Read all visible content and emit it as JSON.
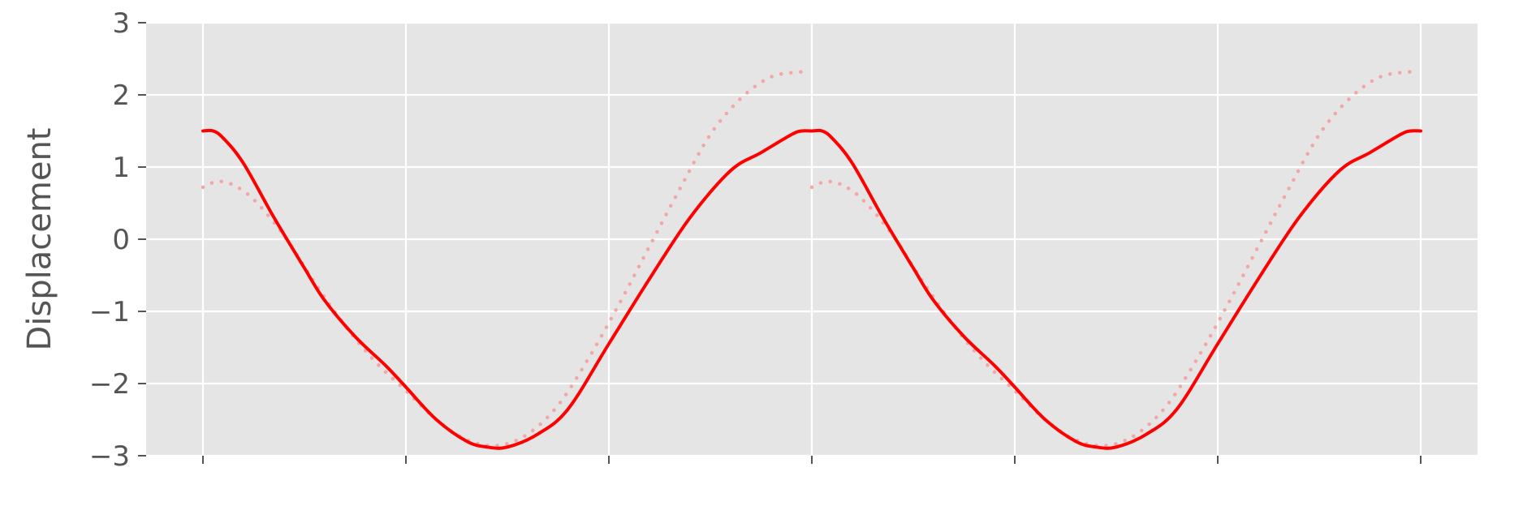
{
  "chart_data": {
    "type": "line",
    "title": "",
    "xlabel": "",
    "ylabel": "Displacement",
    "xlim": [
      -0.28,
      6.28
    ],
    "ylim": [
      -3,
      3
    ],
    "x_ticks": [
      0,
      1,
      2,
      3,
      4,
      5,
      6
    ],
    "x_tick_labels": [
      "",
      "",
      "",
      "",
      "",
      "",
      ""
    ],
    "y_ticks": [
      -3,
      -2,
      -1,
      0,
      1,
      2,
      3
    ],
    "y_tick_labels": [
      "−3",
      "−2",
      "−1",
      "0",
      "1",
      "2",
      "3"
    ],
    "grid": true,
    "background": "#e5e5e5",
    "series": [
      {
        "style": "solid",
        "color": "#ff0000",
        "x": [
          0,
          0.05,
          0.1,
          0.2,
          0.35,
          0.5,
          0.6,
          0.75,
          0.9,
          1.0,
          1.15,
          1.3,
          1.4,
          1.5,
          1.65,
          1.8,
          2.0,
          2.2,
          2.4,
          2.6,
          2.75,
          2.9,
          2.95,
          3.0,
          3.05,
          3.1,
          3.2,
          3.35,
          3.5,
          3.6,
          3.75,
          3.9,
          4.0,
          4.15,
          4.3,
          4.4,
          4.5,
          4.65,
          4.8,
          5.0,
          5.2,
          5.4,
          5.6,
          5.75,
          5.9,
          5.95,
          6.0
        ],
        "y": [
          1.5,
          1.5,
          1.4,
          1.05,
          0.3,
          -0.4,
          -0.85,
          -1.35,
          -1.75,
          -2.05,
          -2.5,
          -2.8,
          -2.88,
          -2.88,
          -2.7,
          -2.35,
          -1.45,
          -0.55,
          0.3,
          0.95,
          1.2,
          1.45,
          1.5,
          1.5,
          1.5,
          1.4,
          1.05,
          0.3,
          -0.4,
          -0.85,
          -1.35,
          -1.75,
          -2.05,
          -2.5,
          -2.8,
          -2.88,
          -2.88,
          -2.7,
          -2.35,
          -1.45,
          -0.55,
          0.3,
          0.95,
          1.2,
          1.45,
          1.5,
          1.5
        ]
      },
      {
        "style": "dotted",
        "color": "#f4a6a6",
        "x": [
          0,
          0.07,
          0.15,
          0.25,
          0.4,
          0.55,
          0.7,
          0.85,
          1.0,
          1.15,
          1.3,
          1.45,
          1.6,
          1.75,
          1.9,
          2.05,
          2.2,
          2.35,
          2.5,
          2.65,
          2.8,
          2.95
        ],
        "y": [
          0.72,
          0.8,
          0.75,
          0.55,
          0.05,
          -0.6,
          -1.2,
          -1.7,
          -2.1,
          -2.5,
          -2.78,
          -2.86,
          -2.7,
          -2.3,
          -1.65,
          -0.9,
          -0.1,
          0.7,
          1.45,
          1.95,
          2.25,
          2.32
        ]
      },
      {
        "style": "dotted",
        "color": "#f4a6a6",
        "x": [
          3.0,
          3.07,
          3.15,
          3.25,
          3.4,
          3.55,
          3.7,
          3.85,
          4.0,
          4.15,
          4.3,
          4.45,
          4.6,
          4.75,
          4.9,
          5.05,
          5.2,
          5.35,
          5.5,
          5.65,
          5.8,
          5.95
        ],
        "y": [
          0.72,
          0.8,
          0.75,
          0.55,
          0.05,
          -0.6,
          -1.2,
          -1.7,
          -2.1,
          -2.5,
          -2.78,
          -2.86,
          -2.7,
          -2.3,
          -1.65,
          -0.9,
          -0.1,
          0.7,
          1.45,
          1.95,
          2.25,
          2.32
        ]
      }
    ]
  }
}
